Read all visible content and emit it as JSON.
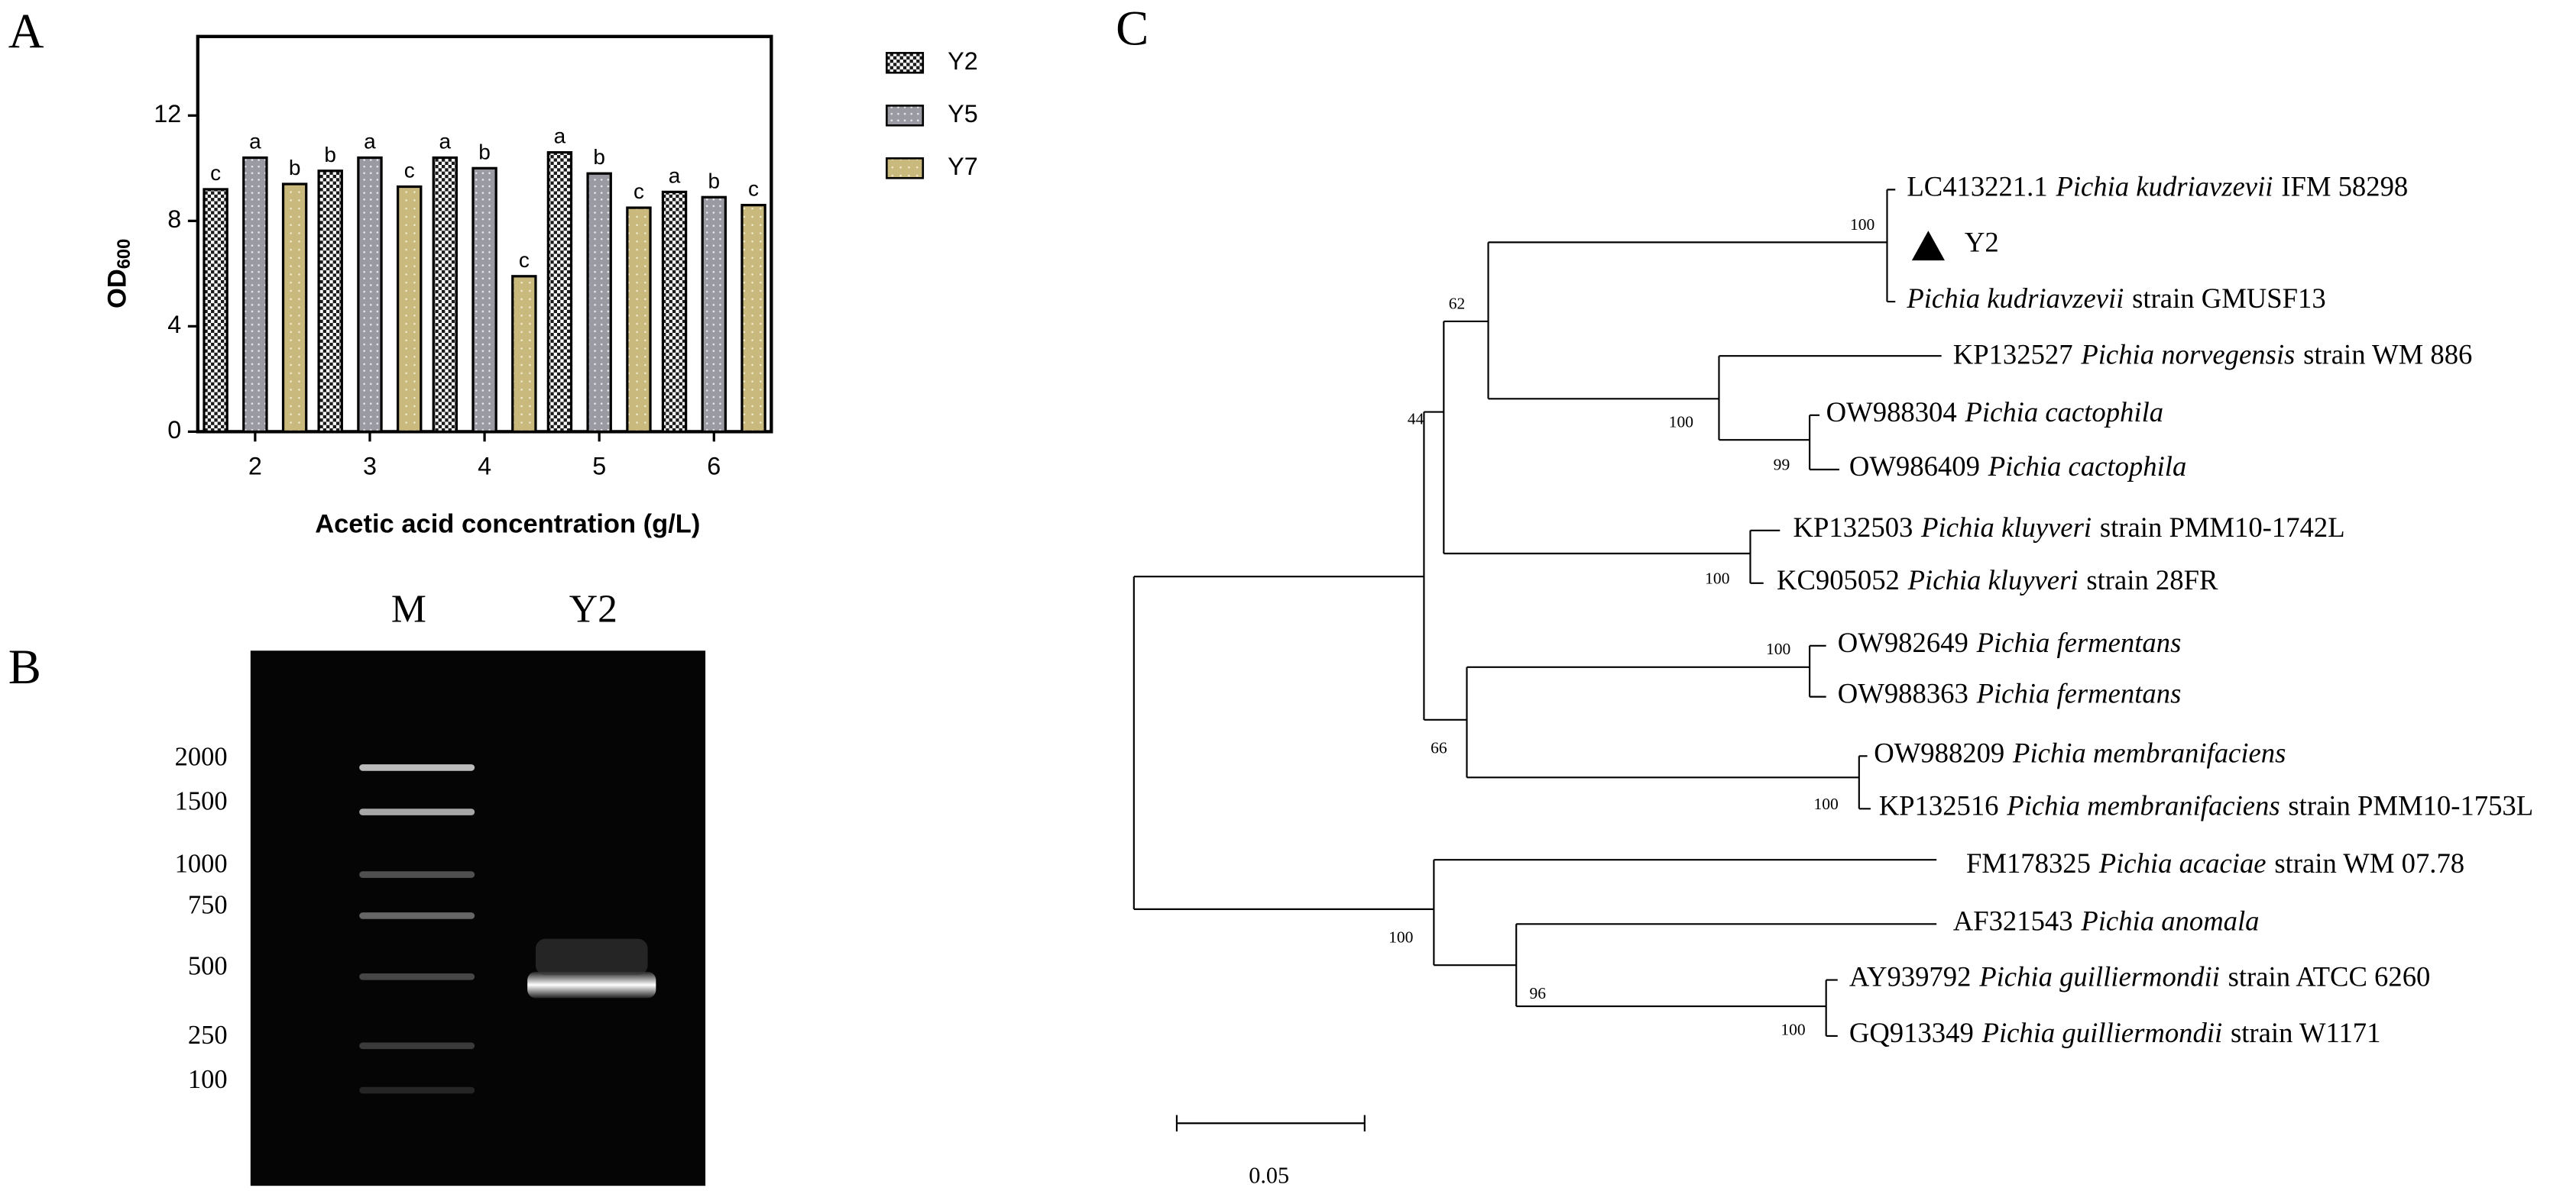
{
  "chart_data": {
    "type": "bar",
    "panel": "A",
    "categories": [
      "2",
      "3",
      "4",
      "5",
      "6"
    ],
    "series": [
      {
        "name": "Y2",
        "color": "#1a1a1a",
        "values": [
          9.2,
          9.9,
          10.4,
          10.6,
          9.1
        ],
        "letters": [
          "c",
          "b",
          "a",
          "a",
          "a"
        ]
      },
      {
        "name": "Y5",
        "color": "#9a9aa2",
        "values": [
          10.4,
          10.4,
          10.0,
          9.8,
          8.9
        ],
        "letters": [
          "a",
          "a",
          "b",
          "b",
          "b"
        ]
      },
      {
        "name": "Y7",
        "color": "#c9b97c",
        "values": [
          9.4,
          9.3,
          5.9,
          8.5,
          8.6
        ],
        "letters": [
          "b",
          "c",
          "c",
          "c",
          "c"
        ]
      }
    ],
    "ylim": [
      0,
      15
    ],
    "yticks": [
      0,
      4,
      8,
      12
    ],
    "ylabel": "OD",
    "ylabel_sub": "600",
    "xlabel": "Acetic acid concentration (g/L)",
    "legend": "right"
  },
  "gel": {
    "panel": "B",
    "lanes": [
      "M",
      "Y2"
    ],
    "markers": [
      2000,
      1500,
      1000,
      750,
      500,
      250,
      100
    ]
  },
  "tree": {
    "panel": "C",
    "leaves": [
      {
        "accession": "LC413221.1",
        "species": "Pichia kudriavzevii",
        "suffix": "IFM 58298"
      },
      {
        "accession": "Y2"
      },
      {
        "species": "Pichia kudriavzevii",
        "suffix": "strain GMUSF13"
      },
      {
        "accession": "KP132527",
        "species": "Pichia norvegensis",
        "suffix": "strain WM 886"
      },
      {
        "accession": "OW988304",
        "species": "Pichia cactophila"
      },
      {
        "accession": "OW986409",
        "species": "Pichia cactophila"
      },
      {
        "accession": "KP132503",
        "species": "Pichia kluyveri",
        "suffix": "strain PMM10-1742L"
      },
      {
        "accession": "KC905052",
        "species": "Pichia kluyveri",
        "suffix": "strain 28FR"
      },
      {
        "accession": "OW982649",
        "species": "Pichia fermentans"
      },
      {
        "accession": "OW988363",
        "species": "Pichia fermentans"
      },
      {
        "accession": "OW988209",
        "species": "Pichia membranifaciens"
      },
      {
        "accession": "KP132516",
        "species": "Pichia membranifaciens",
        "suffix": "strain PMM10-1753L"
      },
      {
        "accession": "FM178325",
        "species": "Pichia acaciae",
        "suffix": "strain WM 07.78"
      },
      {
        "accession": "AF321543",
        "species": "Pichia anomala"
      },
      {
        "accession": "AY939792",
        "species": "Pichia guilliermondii",
        "suffix": "strain ATCC 6260"
      },
      {
        "accession": "GQ913349",
        "species": "Pichia guilliermondii",
        "suffix": "strain W1171"
      }
    ],
    "bootstrap": [
      100,
      62,
      44,
      100,
      99,
      100,
      100,
      66,
      100,
      100,
      96,
      100
    ],
    "scale": "0.05"
  }
}
